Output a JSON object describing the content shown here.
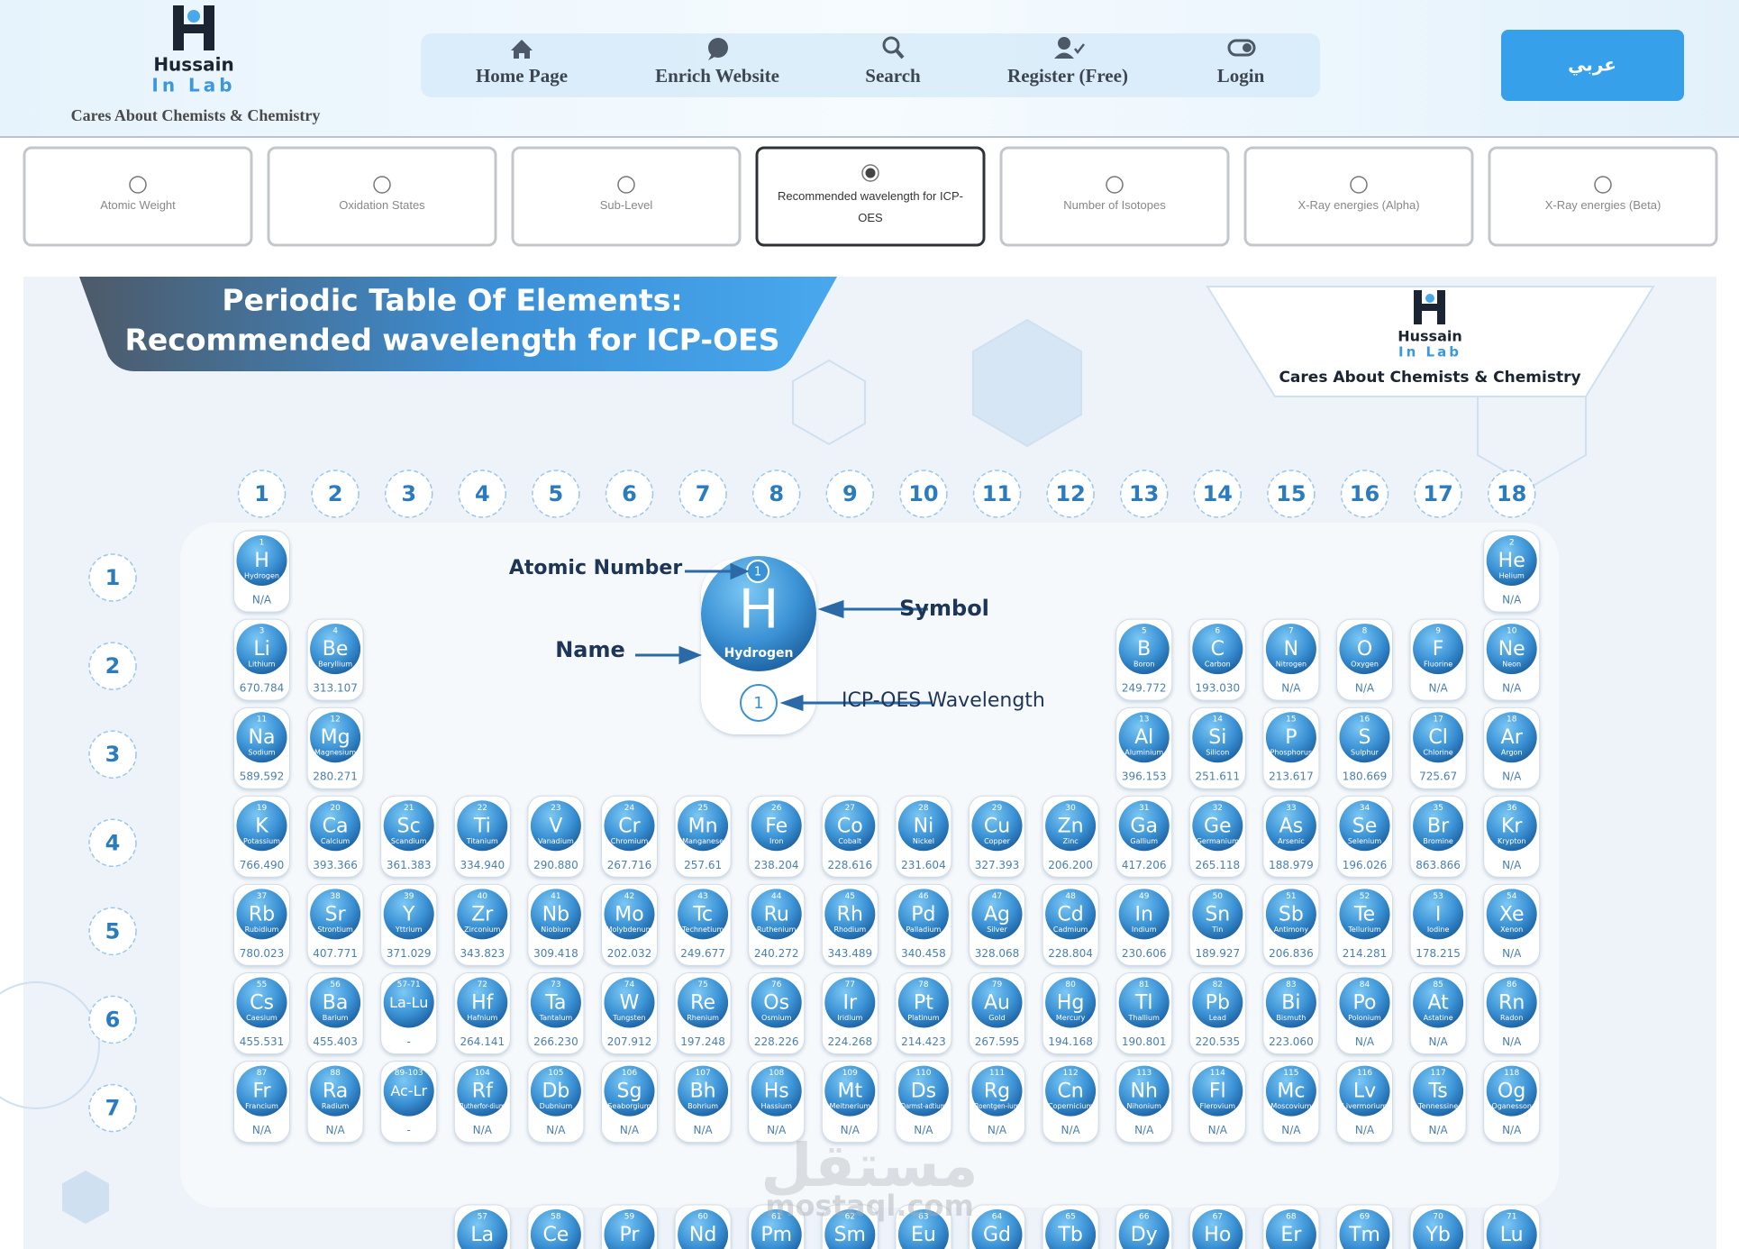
{
  "header": {
    "logo_title": "Hussain",
    "logo_subtitle": "In Lab",
    "tagline": "Cares About Chemists & Chemistry",
    "nav": [
      "Home Page",
      "Enrich Website",
      "Search",
      "Register (Free)",
      "Login"
    ],
    "language_button": "عربي"
  },
  "options": [
    {
      "label": "Atomic Weight",
      "selected": false
    },
    {
      "label": "Oxidation States",
      "selected": false
    },
    {
      "label": "Sub-Level",
      "selected": false
    },
    {
      "label": "Recommended wavelength for ICP-OES",
      "selected": true
    },
    {
      "label": "Number of Isotopes",
      "selected": false
    },
    {
      "label": "X-Ray energies (Alpha)",
      "selected": false
    },
    {
      "label": "X-Ray energies (Beta)",
      "selected": false
    }
  ],
  "poster": {
    "title_line1": "Periodic Table Of Elements:",
    "title_line2": "Recommended wavelength for ICP-OES",
    "logo_title": "Hussain",
    "logo_subtitle": "In Lab",
    "tagline": "Cares About Chemists & Chemistry",
    "legend": {
      "atomic_number": "Atomic Number",
      "symbol": "Symbol",
      "name": "Name",
      "wavelength": "ICP-OES Wavelength",
      "sample": {
        "number": 1,
        "symbol": "H",
        "name": "Hydrogen",
        "value": 1
      }
    },
    "watermark": {
      "arabic": "مستقل",
      "latin": "mostaql.com"
    }
  },
  "table": {
    "groups": [
      1,
      2,
      3,
      4,
      5,
      6,
      7,
      8,
      9,
      10,
      11,
      12,
      13,
      14,
      15,
      16,
      17,
      18
    ],
    "periods": [
      1,
      2,
      3,
      4,
      5,
      6,
      7
    ],
    "rows": [
      [
        {
          "number": 1,
          "symbol": "H",
          "name": "Hydrogen",
          "value": "N/A"
        },
        {
          "number": 2,
          "symbol": "He",
          "name": "Helium",
          "value": "N/A"
        }
      ],
      [
        {
          "number": 3,
          "symbol": "Li",
          "name": "Lithium",
          "value": "670.784"
        },
        {
          "number": 4,
          "symbol": "Be",
          "name": "Beryllium",
          "value": "313.107"
        },
        {
          "number": 5,
          "symbol": "B",
          "name": "Boron",
          "value": "249.772"
        },
        {
          "number": 6,
          "symbol": "C",
          "name": "Carbon",
          "value": "193.030"
        },
        {
          "number": 7,
          "symbol": "N",
          "name": "Nitrogen",
          "value": "N/A"
        },
        {
          "number": 8,
          "symbol": "O",
          "name": "Oxygen",
          "value": "N/A"
        },
        {
          "number": 9,
          "symbol": "F",
          "name": "Fluorine",
          "value": "N/A"
        },
        {
          "number": 10,
          "symbol": "Ne",
          "name": "Neon",
          "value": "N/A"
        }
      ],
      [
        {
          "number": 11,
          "symbol": "Na",
          "name": "Sodium",
          "value": "589.592"
        },
        {
          "number": 12,
          "symbol": "Mg",
          "name": "Magnesium",
          "value": "280.271"
        },
        {
          "number": 13,
          "symbol": "Al",
          "name": "Aluminium",
          "value": "396.153"
        },
        {
          "number": 14,
          "symbol": "Si",
          "name": "Silicon",
          "value": "251.611"
        },
        {
          "number": 15,
          "symbol": "P",
          "name": "Phosphorus",
          "value": "213.617"
        },
        {
          "number": 16,
          "symbol": "S",
          "name": "Sulphur",
          "value": "180.669"
        },
        {
          "number": 17,
          "symbol": "Cl",
          "name": "Chlorine",
          "value": "725.67"
        },
        {
          "number": 18,
          "symbol": "Ar",
          "name": "Argon",
          "value": "N/A"
        }
      ],
      [
        {
          "number": 19,
          "symbol": "K",
          "name": "Potassium",
          "value": "766.490"
        },
        {
          "number": 20,
          "symbol": "Ca",
          "name": "Calcium",
          "value": "393.366"
        },
        {
          "number": 21,
          "symbol": "Sc",
          "name": "Scandium",
          "value": "361.383"
        },
        {
          "number": 22,
          "symbol": "Ti",
          "name": "Titanium",
          "value": "334.940"
        },
        {
          "number": 23,
          "symbol": "V",
          "name": "Vanadium",
          "value": "290.880"
        },
        {
          "number": 24,
          "symbol": "Cr",
          "name": "Chromium",
          "value": "267.716"
        },
        {
          "number": 25,
          "symbol": "Mn",
          "name": "Manganese",
          "value": "257.61"
        },
        {
          "number": 26,
          "symbol": "Fe",
          "name": "Iron",
          "value": "238.204"
        },
        {
          "number": 27,
          "symbol": "Co",
          "name": "Cobalt",
          "value": "228.616"
        },
        {
          "number": 28,
          "symbol": "Ni",
          "name": "Nickel",
          "value": "231.604"
        },
        {
          "number": 29,
          "symbol": "Cu",
          "name": "Copper",
          "value": "327.393"
        },
        {
          "number": 30,
          "symbol": "Zn",
          "name": "Zinc",
          "value": "206.200"
        },
        {
          "number": 31,
          "symbol": "Ga",
          "name": "Gallium",
          "value": "417.206"
        },
        {
          "number": 32,
          "symbol": "Ge",
          "name": "Germanium",
          "value": "265.118"
        },
        {
          "number": 33,
          "symbol": "As",
          "name": "Arsenic",
          "value": "188.979"
        },
        {
          "number": 34,
          "symbol": "Se",
          "name": "Selenium",
          "value": "196.026"
        },
        {
          "number": 35,
          "symbol": "Br",
          "name": "Bromine",
          "value": "863.866"
        },
        {
          "number": 36,
          "symbol": "Kr",
          "name": "Krypton",
          "value": "N/A"
        }
      ],
      [
        {
          "number": 37,
          "symbol": "Rb",
          "name": "Rubidium",
          "value": "780.023"
        },
        {
          "number": 38,
          "symbol": "Sr",
          "name": "Strontium",
          "value": "407.771"
        },
        {
          "number": 39,
          "symbol": "Y",
          "name": "Yttrium",
          "value": "371.029"
        },
        {
          "number": 40,
          "symbol": "Zr",
          "name": "Zirconium",
          "value": "343.823"
        },
        {
          "number": 41,
          "symbol": "Nb",
          "name": "Niobium",
          "value": "309.418"
        },
        {
          "number": 42,
          "symbol": "Mo",
          "name": "Molybdenum",
          "value": "202.032"
        },
        {
          "number": 43,
          "symbol": "Tc",
          "name": "Technetium",
          "value": "249.677"
        },
        {
          "number": 44,
          "symbol": "Ru",
          "name": "Ruthenium",
          "value": "240.272"
        },
        {
          "number": 45,
          "symbol": "Rh",
          "name": "Rhodium",
          "value": "343.489"
        },
        {
          "number": 46,
          "symbol": "Pd",
          "name": "Palladium",
          "value": "340.458"
        },
        {
          "number": 47,
          "symbol": "Ag",
          "name": "Silver",
          "value": "328.068"
        },
        {
          "number": 48,
          "symbol": "Cd",
          "name": "Cadmium",
          "value": "228.804"
        },
        {
          "number": 49,
          "symbol": "In",
          "name": "Indium",
          "value": "230.606"
        },
        {
          "number": 50,
          "symbol": "Sn",
          "name": "Tin",
          "value": "189.927"
        },
        {
          "number": 51,
          "symbol": "Sb",
          "name": "Antimony",
          "value": "206.836"
        },
        {
          "number": 52,
          "symbol": "Te",
          "name": "Tellurium",
          "value": "214.281"
        },
        {
          "number": 53,
          "symbol": "I",
          "name": "Iodine",
          "value": "178.215"
        },
        {
          "number": 54,
          "symbol": "Xe",
          "name": "Xenon",
          "value": "N/A"
        }
      ],
      [
        {
          "number": 55,
          "symbol": "Cs",
          "name": "Caesium",
          "value": "455.531"
        },
        {
          "number": 56,
          "symbol": "Ba",
          "name": "Barium",
          "value": "455.403"
        },
        {
          "number": "57-71",
          "symbol": "La-Lu",
          "name": null,
          "value": "-"
        },
        {
          "number": 72,
          "symbol": "Hf",
          "name": "Hafnium",
          "value": "264.141"
        },
        {
          "number": 73,
          "symbol": "Ta",
          "name": "Tantalum",
          "value": "266.230"
        },
        {
          "number": 74,
          "symbol": "W",
          "name": "Tungsten",
          "value": "207.912"
        },
        {
          "number": 75,
          "symbol": "Re",
          "name": "Rhenium",
          "value": "197.248"
        },
        {
          "number": 76,
          "symbol": "Os",
          "name": "Osmium",
          "value": "228.226"
        },
        {
          "number": 77,
          "symbol": "Ir",
          "name": "Iridium",
          "value": "224.268"
        },
        {
          "number": 78,
          "symbol": "Pt",
          "name": "Platinum",
          "value": "214.423"
        },
        {
          "number": 79,
          "symbol": "Au",
          "name": "Gold",
          "value": "267.595"
        },
        {
          "number": 80,
          "symbol": "Hg",
          "name": "Mercury",
          "value": "194.168"
        },
        {
          "number": 81,
          "symbol": "Tl",
          "name": "Thallium",
          "value": "190.801"
        },
        {
          "number": 82,
          "symbol": "Pb",
          "name": "Lead",
          "value": "220.535"
        },
        {
          "number": 83,
          "symbol": "Bi",
          "name": "Bismuth",
          "value": "223.060"
        },
        {
          "number": 84,
          "symbol": "Po",
          "name": "Polonium",
          "value": "N/A"
        },
        {
          "number": 85,
          "symbol": "At",
          "name": "Astatine",
          "value": "N/A"
        },
        {
          "number": 86,
          "symbol": "Rn",
          "name": "Radon",
          "value": "N/A"
        }
      ],
      [
        {
          "number": 87,
          "symbol": "Fr",
          "name": "Francium",
          "value": "N/A"
        },
        {
          "number": 88,
          "symbol": "Ra",
          "name": "Radium",
          "value": "N/A"
        },
        {
          "number": "89-103",
          "symbol": "Ac-Lr",
          "name": null,
          "value": "-"
        },
        {
          "number": 104,
          "symbol": "Rf",
          "name": "Rutherfor-dium",
          "value": "N/A"
        },
        {
          "number": 105,
          "symbol": "Db",
          "name": "Dubnium",
          "value": "N/A"
        },
        {
          "number": 106,
          "symbol": "Sg",
          "name": "Seaborgium",
          "value": "N/A"
        },
        {
          "number": 107,
          "symbol": "Bh",
          "name": "Bohrium",
          "value": "N/A"
        },
        {
          "number": 108,
          "symbol": "Hs",
          "name": "Hassium",
          "value": "N/A"
        },
        {
          "number": 109,
          "symbol": "Mt",
          "name": "Meitnerium",
          "value": "N/A"
        },
        {
          "number": 110,
          "symbol": "Ds",
          "name": "Darmst-adtium",
          "value": "N/A"
        },
        {
          "number": 111,
          "symbol": "Rg",
          "name": "Roentgen-ium",
          "value": "N/A"
        },
        {
          "number": 112,
          "symbol": "Cn",
          "name": "Copernicium",
          "value": "N/A"
        },
        {
          "number": 113,
          "symbol": "Nh",
          "name": "Nihonium",
          "value": "N/A"
        },
        {
          "number": 114,
          "symbol": "Fl",
          "name": "Flerovium",
          "value": "N/A"
        },
        {
          "number": 115,
          "symbol": "Mc",
          "name": "Moscovium",
          "value": "N/A"
        },
        {
          "number": 116,
          "symbol": "Lv",
          "name": "Livermorium",
          "value": "N/A"
        },
        {
          "number": 117,
          "symbol": "Ts",
          "name": "Tennessine",
          "value": "N/A"
        },
        {
          "number": 118,
          "symbol": "Og",
          "name": "Oganesson",
          "value": "N/A"
        }
      ]
    ],
    "f_block": [
      {
        "number": 57,
        "symbol": "La"
      },
      {
        "number": 58,
        "symbol": "Ce"
      },
      {
        "number": 59,
        "symbol": "Pr"
      },
      {
        "number": 60,
        "symbol": "Nd"
      },
      {
        "number": 61,
        "symbol": "Pm"
      },
      {
        "number": 62,
        "symbol": "Sm"
      },
      {
        "number": 63,
        "symbol": "Eu"
      },
      {
        "number": 64,
        "symbol": "Gd"
      },
      {
        "number": 65,
        "symbol": "Tb"
      },
      {
        "number": 66,
        "symbol": "Dy"
      },
      {
        "number": 67,
        "symbol": "Ho"
      },
      {
        "number": 68,
        "symbol": "Er"
      },
      {
        "number": 69,
        "symbol": "Tm"
      },
      {
        "number": 70,
        "symbol": "Yb"
      },
      {
        "number": 71,
        "symbol": "Lu"
      }
    ]
  }
}
